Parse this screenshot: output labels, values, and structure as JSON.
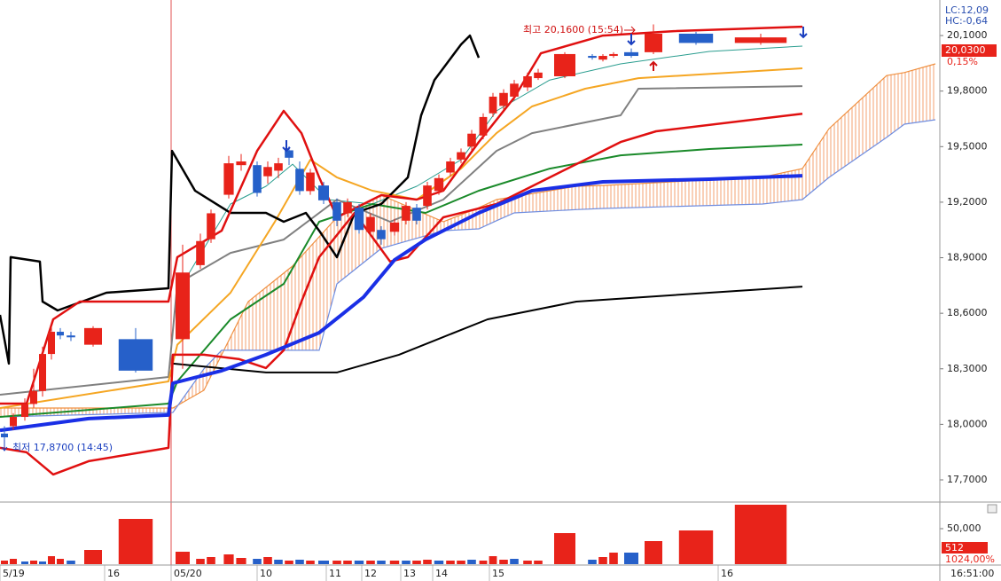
{
  "chart_data": [
    {
      "type": "candlestick",
      "lc": "LC:12,09",
      "hc": "HC:-0,64",
      "last_price": "20,0300",
      "last_change": "0,15%",
      "annotations": [
        "최고 20,1600 (15:54)",
        "최저 17,8700 (14:45)"
      ],
      "up_color": "#e8231a",
      "down_color": "#2660c9",
      "xlim": [
        0,
        212
      ],
      "ylim": [
        17.585,
        20.292
      ],
      "yticks": [
        {
          "value": 20.1,
          "label": "20,1000"
        },
        {
          "value": 19.8,
          "label": "19,8000"
        },
        {
          "value": 19.5,
          "label": "19,5000"
        },
        {
          "value": 19.2,
          "label": "19,2000"
        },
        {
          "value": 18.9,
          "label": "18,9000"
        },
        {
          "value": 18.6,
          "label": "18,6000"
        },
        {
          "value": 18.3,
          "label": "18,3000"
        },
        {
          "value": 18.0,
          "label": "18,0000"
        },
        {
          "value": 17.7,
          "label": "17,7000"
        }
      ],
      "x": [
        1,
        3,
        5.6,
        7.6,
        9.6,
        11.6,
        13.6,
        16,
        21,
        30.6,
        41.2,
        45.2,
        47.6,
        51.6,
        54.4,
        58,
        60.4,
        62.8,
        65.2,
        67.6,
        70,
        73,
        76,
        78.4,
        81,
        83.6,
        86,
        89,
        91.6,
        94,
        96.4,
        99,
        101.6,
        104,
        106.4,
        109,
        111.2,
        113.6,
        116,
        119,
        121.4,
        127.4,
        133.6,
        136,
        138.4,
        142.4,
        147.4,
        157,
        171.6
      ],
      "open": [
        17.95,
        17.99,
        18.04,
        18.11,
        18.18,
        18.38,
        18.5,
        18.48,
        18.43,
        18.46,
        18.46,
        18.86,
        19.0,
        19.24,
        19.4,
        19.4,
        19.34,
        19.37,
        19.48,
        19.38,
        19.26,
        19.29,
        19.2,
        19.14,
        19.17,
        19.04,
        19.05,
        19.04,
        19.1,
        19.17,
        19.18,
        19.26,
        19.36,
        19.43,
        19.5,
        19.56,
        19.68,
        19.72,
        19.77,
        19.82,
        19.87,
        19.88,
        19.99,
        19.97,
        19.99,
        20.01,
        20.01,
        20.11,
        20.06
      ],
      "high": [
        17.99,
        18.06,
        18.14,
        18.3,
        18.42,
        18.53,
        18.52,
        18.5,
        18.53,
        18.52,
        18.97,
        19.03,
        19.16,
        19.45,
        19.46,
        19.42,
        19.42,
        19.44,
        19.5,
        19.42,
        19.38,
        19.31,
        19.22,
        19.22,
        19.19,
        19.14,
        19.07,
        19.11,
        19.2,
        19.19,
        19.31,
        19.35,
        19.44,
        19.49,
        19.59,
        19.68,
        19.79,
        19.81,
        19.86,
        19.9,
        19.92,
        20.01,
        20.0,
        20.0,
        20.01,
        20.03,
        20.16,
        20.12,
        20.11
      ],
      "low": [
        17.87,
        17.97,
        18.02,
        18.09,
        18.15,
        18.35,
        18.46,
        18.45,
        18.42,
        18.28,
        18.3,
        18.84,
        18.98,
        19.22,
        19.37,
        19.23,
        19.3,
        19.33,
        19.4,
        19.24,
        19.24,
        19.19,
        19.07,
        19.12,
        19.03,
        19.02,
        18.97,
        19.02,
        19.08,
        19.08,
        19.16,
        19.24,
        19.34,
        19.41,
        19.48,
        19.54,
        19.66,
        19.7,
        19.75,
        19.8,
        19.86,
        19.87,
        19.97,
        19.96,
        19.98,
        19.98,
        20.0,
        20.05,
        20.05
      ],
      "close": [
        17.93,
        18.04,
        18.11,
        18.18,
        18.38,
        18.5,
        18.48,
        18.47,
        18.52,
        18.29,
        18.82,
        18.99,
        19.14,
        19.41,
        19.42,
        19.25,
        19.39,
        19.41,
        19.44,
        19.26,
        19.36,
        19.21,
        19.1,
        19.2,
        19.05,
        19.12,
        19.0,
        19.09,
        19.18,
        19.1,
        19.29,
        19.33,
        19.42,
        19.47,
        19.57,
        19.66,
        19.77,
        19.79,
        19.84,
        19.88,
        19.9,
        20.0,
        19.98,
        19.99,
        20.0,
        19.99,
        20.11,
        20.06,
        20.09
      ],
      "cloud": {
        "x": [
          0,
          39,
          46,
          50,
          56,
          66,
          72,
          76,
          86,
          100,
          108,
          112,
          116,
          130,
          136,
          172,
          181,
          187,
          200,
          204,
          211
        ],
        "series": [
          {
            "color": "#f09040",
            "values": [
              18.088,
              18.088,
              18.184,
              18.376,
              18.663,
              18.855,
              19.013,
              19.118,
              19.238,
              19.094,
              19.17,
              19.214,
              19.23,
              19.286,
              19.29,
              19.335,
              19.381,
              19.597,
              19.884,
              19.9,
              19.947
            ]
          },
          {
            "color": "#6f8de0",
            "values": [
              18.04,
              18.064,
              18.3,
              18.4,
              18.4,
              18.4,
              18.4,
              18.759,
              18.95,
              19.046,
              19.056,
              19.1,
              19.142,
              19.16,
              19.166,
              19.19,
              19.214,
              19.334,
              19.55,
              19.621,
              19.645
            ]
          }
        ]
      },
      "lines": [
        {
          "color": "#2a9d8f",
          "width": 1,
          "x": [
            40,
            52,
            60,
            66,
            74,
            84,
            94,
            104,
            112,
            124,
            140,
            160,
            181
          ],
          "values": [
            18.711,
            19.19,
            19.286,
            19.405,
            19.214,
            19.19,
            19.286,
            19.429,
            19.693,
            19.86,
            19.947,
            20.014,
            20.043
          ]
        },
        {
          "color": "#808080",
          "width": 2,
          "x": [
            0,
            38,
            40,
            52,
            64,
            76,
            88,
            100,
            112,
            120,
            140,
            144,
            181
          ],
          "values": [
            18.16,
            18.256,
            18.759,
            18.926,
            18.998,
            19.214,
            19.094,
            19.214,
            19.477,
            19.573,
            19.669,
            19.813,
            19.827
          ]
        },
        {
          "color": "#f5a623",
          "width": 2,
          "x": [
            0,
            38,
            40,
            52,
            62,
            70,
            76,
            84,
            94,
            104,
            112,
            120,
            132,
            144,
            181
          ],
          "values": [
            18.088,
            18.232,
            18.43,
            18.711,
            19.094,
            19.429,
            19.334,
            19.262,
            19.214,
            19.381,
            19.573,
            19.717,
            19.813,
            19.87,
            19.923
          ]
        },
        {
          "color": "#1a8a2a",
          "width": 2,
          "x": [
            0,
            38,
            40,
            52,
            64,
            72,
            84,
            96,
            108,
            124,
            140,
            160,
            181
          ],
          "values": [
            18.04,
            18.112,
            18.232,
            18.567,
            18.759,
            19.094,
            19.19,
            19.142,
            19.262,
            19.381,
            19.453,
            19.487,
            19.511
          ]
        },
        {
          "color": "#000000",
          "width": 2,
          "x": [
            39,
            60,
            76,
            90,
            110,
            130,
            160,
            181
          ],
          "values": [
            18.328,
            18.28,
            18.28,
            18.376,
            18.567,
            18.663,
            18.711,
            18.744
          ]
        },
        {
          "color": "#000000",
          "width": 2.5,
          "x": [
            0,
            2,
            2.4,
            9,
            9.6,
            13,
            24,
            38,
            38.8,
            44,
            52,
            60,
            64,
            69,
            72,
            76,
            80,
            86,
            92,
            95,
            98,
            104,
            106,
            108
          ],
          "values": [
            18.591,
            18.328,
            18.903,
            18.879,
            18.663,
            18.615,
            18.711,
            18.735,
            19.477,
            19.262,
            19.142,
            19.142,
            19.094,
            19.142,
            19.046,
            18.903,
            19.142,
            19.19,
            19.334,
            19.669,
            19.86,
            20.052,
            20.1,
            19.98
          ]
        },
        {
          "color": "#e01010",
          "width": 2.5,
          "x": [
            0,
            6,
            12,
            18,
            38,
            40,
            50,
            58,
            64,
            68,
            72,
            76,
            80,
            86,
            94,
            100,
            108,
            116,
            122,
            136,
            152,
            181
          ],
          "values": [
            18.112,
            18.112,
            18.567,
            18.663,
            18.663,
            18.903,
            19.046,
            19.477,
            19.693,
            19.573,
            19.334,
            19.118,
            19.166,
            19.238,
            19.214,
            19.262,
            19.525,
            19.765,
            20.004,
            20.1,
            20.124,
            20.148
          ]
        },
        {
          "color": "#e01010",
          "width": 2.5,
          "x": [
            0,
            6,
            12,
            20,
            38,
            39,
            46,
            54,
            60,
            64,
            68,
            72,
            80,
            88,
            92,
            100,
            112,
            124,
            132,
            140,
            148,
            181
          ],
          "values": [
            17.873,
            17.849,
            17.729,
            17.801,
            17.873,
            18.376,
            18.376,
            18.352,
            18.304,
            18.4,
            18.663,
            18.903,
            19.142,
            18.879,
            18.903,
            19.118,
            19.19,
            19.334,
            19.429,
            19.525,
            19.583,
            19.678
          ]
        },
        {
          "color": "#1a2fe6",
          "width": 4,
          "x": [
            0,
            20,
            38,
            39,
            50,
            60,
            72,
            82,
            89,
            96,
            108,
            120,
            136,
            160,
            181
          ],
          "values": [
            17.968,
            18.031,
            18.05,
            18.222,
            18.29,
            18.376,
            18.495,
            18.687,
            18.888,
            18.998,
            19.142,
            19.262,
            19.31,
            19.324,
            19.343
          ]
        }
      ]
    },
    {
      "type": "bar",
      "last_volume": "512",
      "volume_ratio": "1024,00%",
      "last_time": "16:51:00",
      "xlim": [
        0,
        212
      ],
      "ylim": [
        0,
        85000
      ],
      "yticks": [
        {
          "value": 50000,
          "label": "50,000"
        }
      ],
      "xticks": [
        {
          "value": 0,
          "label": "5/19"
        },
        {
          "value": 23.6,
          "label": "16"
        },
        {
          "value": 38.6,
          "label": "05/20"
        },
        {
          "value": 58,
          "label": "10"
        },
        {
          "value": 73.6,
          "label": "11"
        },
        {
          "value": 81.6,
          "label": "12"
        },
        {
          "value": 90.4,
          "label": "13"
        },
        {
          "value": 97.6,
          "label": "14"
        },
        {
          "value": 110.4,
          "label": "15"
        },
        {
          "value": 162,
          "label": "16"
        }
      ],
      "x": [
        1,
        3,
        5.6,
        7.6,
        9.6,
        11.6,
        13.6,
        16,
        21,
        30.6,
        41.2,
        45.2,
        47.6,
        51.6,
        54.4,
        58,
        60.4,
        62.8,
        65.2,
        67.6,
        70,
        73,
        76,
        78.4,
        81,
        83.6,
        86,
        89,
        91.6,
        94,
        96.4,
        99,
        101.6,
        104,
        106.4,
        109,
        111.2,
        113.6,
        116,
        119,
        121.4,
        127.4,
        133.6,
        136,
        138.4,
        142.4,
        147.4,
        157,
        171.6
      ],
      "values": [
        5000,
        7500,
        3750,
        5000,
        3750,
        11250,
        7500,
        5000,
        20000,
        63750,
        17500,
        7500,
        10000,
        13750,
        8750,
        7500,
        10000,
        6250,
        5000,
        6250,
        5000,
        5000,
        5000,
        5000,
        5000,
        5000,
        5000,
        5000,
        5000,
        5000,
        6250,
        5000,
        5000,
        5000,
        6250,
        5000,
        11250,
        6250,
        7500,
        5000,
        5000,
        43750,
        6250,
        10000,
        16250,
        16250,
        32500,
        47500,
        83750
      ],
      "colors": [
        "#e8231a",
        "#e8231a",
        "#2660c9",
        "#e8231a",
        "#2660c9",
        "#e8231a",
        "#e8231a",
        "#2660c9",
        "#e8231a",
        "#e8231a",
        "#e8231a",
        "#e8231a",
        "#e8231a",
        "#e8231a",
        "#e8231a",
        "#2660c9",
        "#e8231a",
        "#2660c9",
        "#e8231a",
        "#2660c9",
        "#e8231a",
        "#2660c9",
        "#e8231a",
        "#e8231a",
        "#2660c9",
        "#e8231a",
        "#2660c9",
        "#e8231a",
        "#2660c9",
        "#e8231a",
        "#e8231a",
        "#2660c9",
        "#e8231a",
        "#e8231a",
        "#2660c9",
        "#e8231a",
        "#e8231a",
        "#e8231a",
        "#2660c9",
        "#e8231a",
        "#e8231a",
        "#e8231a",
        "#2660c9",
        "#e8231a",
        "#e8231a",
        "#2660c9",
        "#e8231a",
        "#e8231a",
        "#e8231a"
      ]
    }
  ]
}
